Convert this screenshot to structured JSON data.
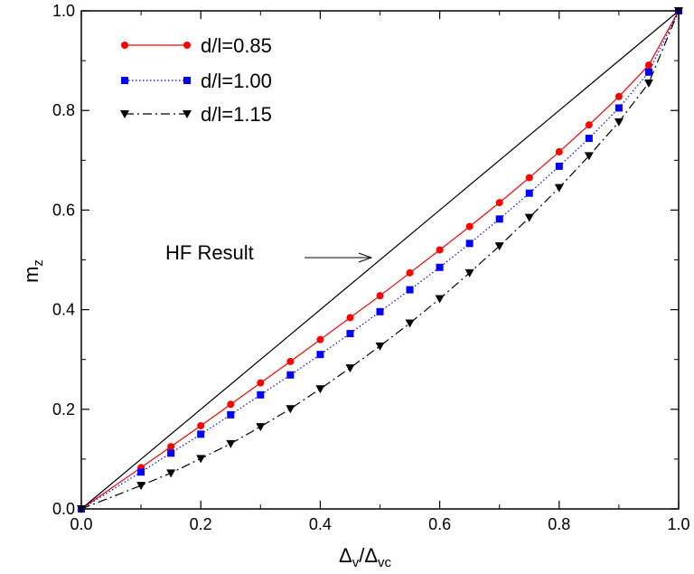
{
  "chart_data": {
    "type": "line",
    "xlabel": {
      "main": "Δ",
      "sub1": "v",
      "slash": "/Δ",
      "sub2": "vc"
    },
    "ylabel": {
      "main": "m",
      "sub": "z"
    },
    "xlim": [
      0.0,
      1.0
    ],
    "ylim": [
      0.0,
      1.0
    ],
    "xticks": [
      "0.0",
      "0.2",
      "0.4",
      "0.6",
      "0.8",
      "1.0"
    ],
    "yticks": [
      "0.0",
      "0.2",
      "0.4",
      "0.6",
      "0.8",
      "1.0"
    ],
    "grid": false,
    "legend_position": "top-left",
    "annotation": {
      "text": "HF Result",
      "points_to": [
        0.5,
        0.5
      ]
    },
    "reference_line": {
      "name": "HF Result",
      "x": [
        0,
        1
      ],
      "y": [
        0,
        1
      ],
      "color": "#000000"
    },
    "series": [
      {
        "name": "d/l=0.85",
        "color": "#ff0000",
        "marker": "circle",
        "line": "solid",
        "x": [
          0,
          0.1,
          0.15,
          0.2,
          0.25,
          0.3,
          0.35,
          0.4,
          0.45,
          0.5,
          0.55,
          0.6,
          0.65,
          0.7,
          0.75,
          0.8,
          0.85,
          0.9,
          0.95,
          1.0
        ],
        "y": [
          0,
          0.083,
          0.125,
          0.167,
          0.21,
          0.253,
          0.296,
          0.34,
          0.384,
          0.428,
          0.474,
          0.52,
          0.567,
          0.615,
          0.665,
          0.717,
          0.771,
          0.828,
          0.891,
          1.0
        ]
      },
      {
        "name": "d/l=1.00",
        "color": "#0000ff",
        "marker": "square",
        "line": "dotted",
        "x": [
          0,
          0.1,
          0.15,
          0.2,
          0.25,
          0.3,
          0.35,
          0.4,
          0.45,
          0.5,
          0.55,
          0.6,
          0.65,
          0.7,
          0.75,
          0.8,
          0.85,
          0.9,
          0.95,
          1.0
        ],
        "y": [
          0,
          0.074,
          0.112,
          0.15,
          0.189,
          0.229,
          0.269,
          0.31,
          0.352,
          0.396,
          0.44,
          0.485,
          0.533,
          0.582,
          0.634,
          0.688,
          0.744,
          0.805,
          0.877,
          1.0
        ]
      },
      {
        "name": "d/l=1.15",
        "color": "#000000",
        "marker": "triangle-down",
        "line": "dashdot",
        "x": [
          0,
          0.1,
          0.15,
          0.2,
          0.25,
          0.3,
          0.35,
          0.4,
          0.45,
          0.5,
          0.55,
          0.6,
          0.65,
          0.7,
          0.75,
          0.8,
          0.85,
          0.9,
          0.95,
          1.0
        ],
        "y": [
          0,
          0.047,
          0.072,
          0.101,
          0.131,
          0.165,
          0.201,
          0.241,
          0.283,
          0.327,
          0.373,
          0.422,
          0.474,
          0.528,
          0.585,
          0.645,
          0.709,
          0.777,
          0.855,
          1.0
        ]
      }
    ]
  }
}
